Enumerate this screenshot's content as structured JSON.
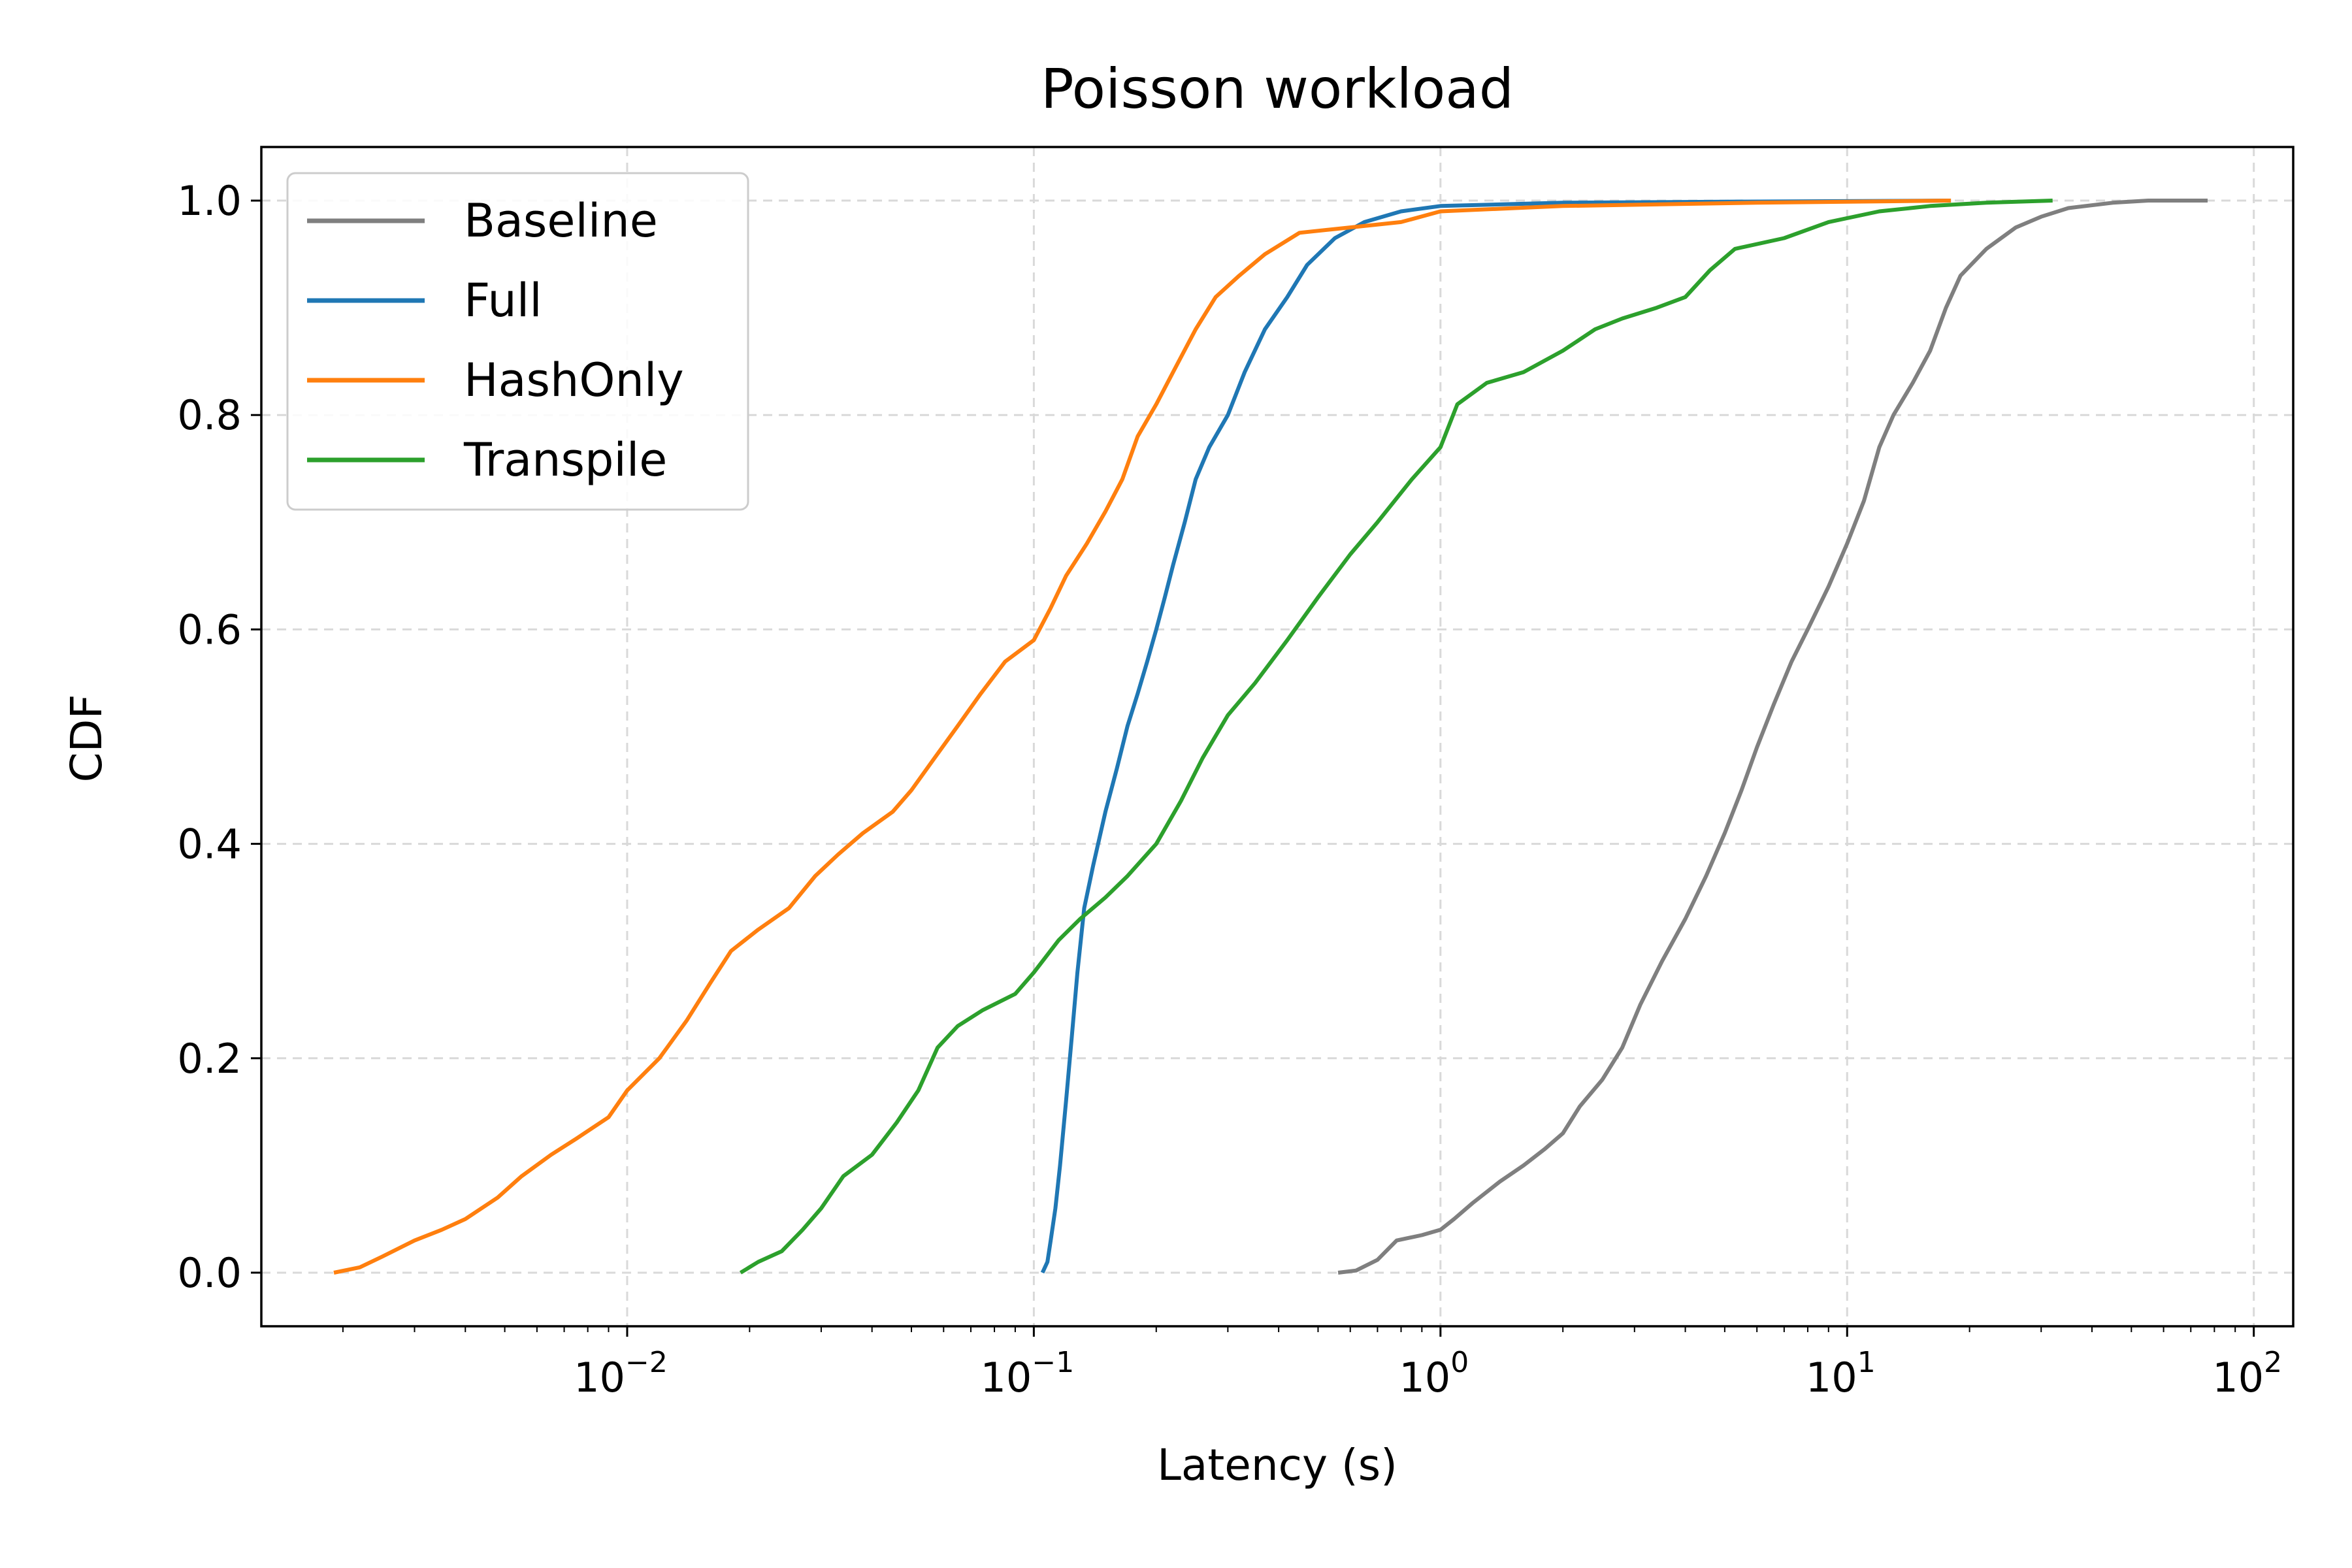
{
  "chart_data": {
    "type": "line",
    "title": "Poisson workload",
    "xlabel": "Latency (s)",
    "ylabel": "CDF",
    "xscale": "log",
    "xlim": [
      0.00126,
      125
    ],
    "ylim": [
      -0.05,
      1.05
    ],
    "x_ticks": [
      {
        "value": 0.01,
        "base": "10",
        "exp": "−2"
      },
      {
        "value": 0.1,
        "base": "10",
        "exp": "−1"
      },
      {
        "value": 1,
        "base": "10",
        "exp": "0"
      },
      {
        "value": 10,
        "base": "10",
        "exp": "1"
      },
      {
        "value": 100,
        "base": "10",
        "exp": "2"
      }
    ],
    "y_ticks": [
      "0.0",
      "0.2",
      "0.4",
      "0.6",
      "0.8",
      "1.0"
    ],
    "grid": true,
    "legend_position": "top-left",
    "series": [
      {
        "name": "Baseline",
        "color": "#7f7f7f",
        "points": [
          [
            0.56,
            0.0
          ],
          [
            0.62,
            0.002
          ],
          [
            0.7,
            0.012
          ],
          [
            0.78,
            0.03
          ],
          [
            0.9,
            0.035
          ],
          [
            1.0,
            0.04
          ],
          [
            1.08,
            0.05
          ],
          [
            1.2,
            0.065
          ],
          [
            1.4,
            0.085
          ],
          [
            1.6,
            0.1
          ],
          [
            1.8,
            0.115
          ],
          [
            2.0,
            0.13
          ],
          [
            2.2,
            0.155
          ],
          [
            2.5,
            0.18
          ],
          [
            2.8,
            0.21
          ],
          [
            3.1,
            0.25
          ],
          [
            3.5,
            0.29
          ],
          [
            4.0,
            0.33
          ],
          [
            4.5,
            0.37
          ],
          [
            5.0,
            0.41
          ],
          [
            5.5,
            0.45
          ],
          [
            6.0,
            0.49
          ],
          [
            6.6,
            0.53
          ],
          [
            7.3,
            0.57
          ],
          [
            8.0,
            0.6
          ],
          [
            9.0,
            0.64
          ],
          [
            10.0,
            0.68
          ],
          [
            11.0,
            0.72
          ],
          [
            12.0,
            0.77
          ],
          [
            13.0,
            0.8
          ],
          [
            14.5,
            0.83
          ],
          [
            16.0,
            0.86
          ],
          [
            17.5,
            0.9
          ],
          [
            19.0,
            0.93
          ],
          [
            22.0,
            0.955
          ],
          [
            26.0,
            0.975
          ],
          [
            30.0,
            0.985
          ],
          [
            35.0,
            0.993
          ],
          [
            45.0,
            0.998
          ],
          [
            55.0,
            1.0
          ],
          [
            77.0,
            1.0
          ]
        ]
      },
      {
        "name": "Full",
        "color": "#1f77b4",
        "points": [
          [
            0.105,
            0.0
          ],
          [
            0.108,
            0.01
          ],
          [
            0.11,
            0.03
          ],
          [
            0.113,
            0.06
          ],
          [
            0.116,
            0.1
          ],
          [
            0.12,
            0.16
          ],
          [
            0.124,
            0.22
          ],
          [
            0.128,
            0.28
          ],
          [
            0.133,
            0.34
          ],
          [
            0.14,
            0.38
          ],
          [
            0.15,
            0.43
          ],
          [
            0.16,
            0.47
          ],
          [
            0.17,
            0.51
          ],
          [
            0.18,
            0.54
          ],
          [
            0.19,
            0.57
          ],
          [
            0.2,
            0.6
          ],
          [
            0.21,
            0.63
          ],
          [
            0.22,
            0.66
          ],
          [
            0.235,
            0.7
          ],
          [
            0.25,
            0.74
          ],
          [
            0.27,
            0.77
          ],
          [
            0.3,
            0.8
          ],
          [
            0.33,
            0.84
          ],
          [
            0.37,
            0.88
          ],
          [
            0.42,
            0.91
          ],
          [
            0.47,
            0.94
          ],
          [
            0.55,
            0.965
          ],
          [
            0.65,
            0.98
          ],
          [
            0.8,
            0.99
          ],
          [
            1.0,
            0.995
          ],
          [
            2.0,
            0.998
          ],
          [
            5.0,
            0.999
          ],
          [
            18.0,
            1.0
          ]
        ]
      },
      {
        "name": "HashOnly",
        "color": "#ff7f0e",
        "points": [
          [
            0.0019,
            0.0
          ],
          [
            0.0022,
            0.005
          ],
          [
            0.0025,
            0.015
          ],
          [
            0.003,
            0.03
          ],
          [
            0.0035,
            0.04
          ],
          [
            0.004,
            0.05
          ],
          [
            0.0048,
            0.07
          ],
          [
            0.0055,
            0.09
          ],
          [
            0.0065,
            0.11
          ],
          [
            0.0075,
            0.125
          ],
          [
            0.009,
            0.145
          ],
          [
            0.01,
            0.17
          ],
          [
            0.012,
            0.2
          ],
          [
            0.014,
            0.235
          ],
          [
            0.016,
            0.27
          ],
          [
            0.018,
            0.3
          ],
          [
            0.021,
            0.32
          ],
          [
            0.025,
            0.34
          ],
          [
            0.029,
            0.37
          ],
          [
            0.033,
            0.39
          ],
          [
            0.038,
            0.41
          ],
          [
            0.045,
            0.43
          ],
          [
            0.05,
            0.45
          ],
          [
            0.057,
            0.48
          ],
          [
            0.065,
            0.51
          ],
          [
            0.074,
            0.54
          ],
          [
            0.085,
            0.57
          ],
          [
            0.1,
            0.59
          ],
          [
            0.11,
            0.62
          ],
          [
            0.12,
            0.65
          ],
          [
            0.135,
            0.68
          ],
          [
            0.15,
            0.71
          ],
          [
            0.165,
            0.74
          ],
          [
            0.18,
            0.78
          ],
          [
            0.2,
            0.81
          ],
          [
            0.22,
            0.84
          ],
          [
            0.25,
            0.88
          ],
          [
            0.28,
            0.91
          ],
          [
            0.32,
            0.93
          ],
          [
            0.37,
            0.95
          ],
          [
            0.45,
            0.97
          ],
          [
            0.6,
            0.975
          ],
          [
            0.8,
            0.98
          ],
          [
            1.0,
            0.99
          ],
          [
            2.0,
            0.995
          ],
          [
            6.0,
            0.998
          ],
          [
            18.0,
            1.0
          ]
        ]
      },
      {
        "name": "Transpile",
        "color": "#2ca02c",
        "points": [
          [
            0.019,
            0.0
          ],
          [
            0.021,
            0.01
          ],
          [
            0.024,
            0.02
          ],
          [
            0.027,
            0.04
          ],
          [
            0.03,
            0.06
          ],
          [
            0.034,
            0.09
          ],
          [
            0.04,
            0.11
          ],
          [
            0.046,
            0.14
          ],
          [
            0.052,
            0.17
          ],
          [
            0.058,
            0.21
          ],
          [
            0.065,
            0.23
          ],
          [
            0.075,
            0.245
          ],
          [
            0.09,
            0.26
          ],
          [
            0.1,
            0.28
          ],
          [
            0.115,
            0.31
          ],
          [
            0.13,
            0.33
          ],
          [
            0.15,
            0.35
          ],
          [
            0.17,
            0.37
          ],
          [
            0.2,
            0.4
          ],
          [
            0.23,
            0.44
          ],
          [
            0.26,
            0.48
          ],
          [
            0.3,
            0.52
          ],
          [
            0.35,
            0.55
          ],
          [
            0.42,
            0.59
          ],
          [
            0.5,
            0.63
          ],
          [
            0.6,
            0.67
          ],
          [
            0.7,
            0.7
          ],
          [
            0.85,
            0.74
          ],
          [
            1.0,
            0.77
          ],
          [
            1.1,
            0.81
          ],
          [
            1.3,
            0.83
          ],
          [
            1.6,
            0.84
          ],
          [
            2.0,
            0.86
          ],
          [
            2.4,
            0.88
          ],
          [
            2.8,
            0.89
          ],
          [
            3.4,
            0.9
          ],
          [
            4.0,
            0.91
          ],
          [
            4.6,
            0.935
          ],
          [
            5.3,
            0.955
          ],
          [
            7.0,
            0.965
          ],
          [
            9.0,
            0.98
          ],
          [
            12.0,
            0.99
          ],
          [
            16.0,
            0.995
          ],
          [
            22.0,
            0.998
          ],
          [
            32.0,
            1.0
          ]
        ]
      }
    ]
  }
}
